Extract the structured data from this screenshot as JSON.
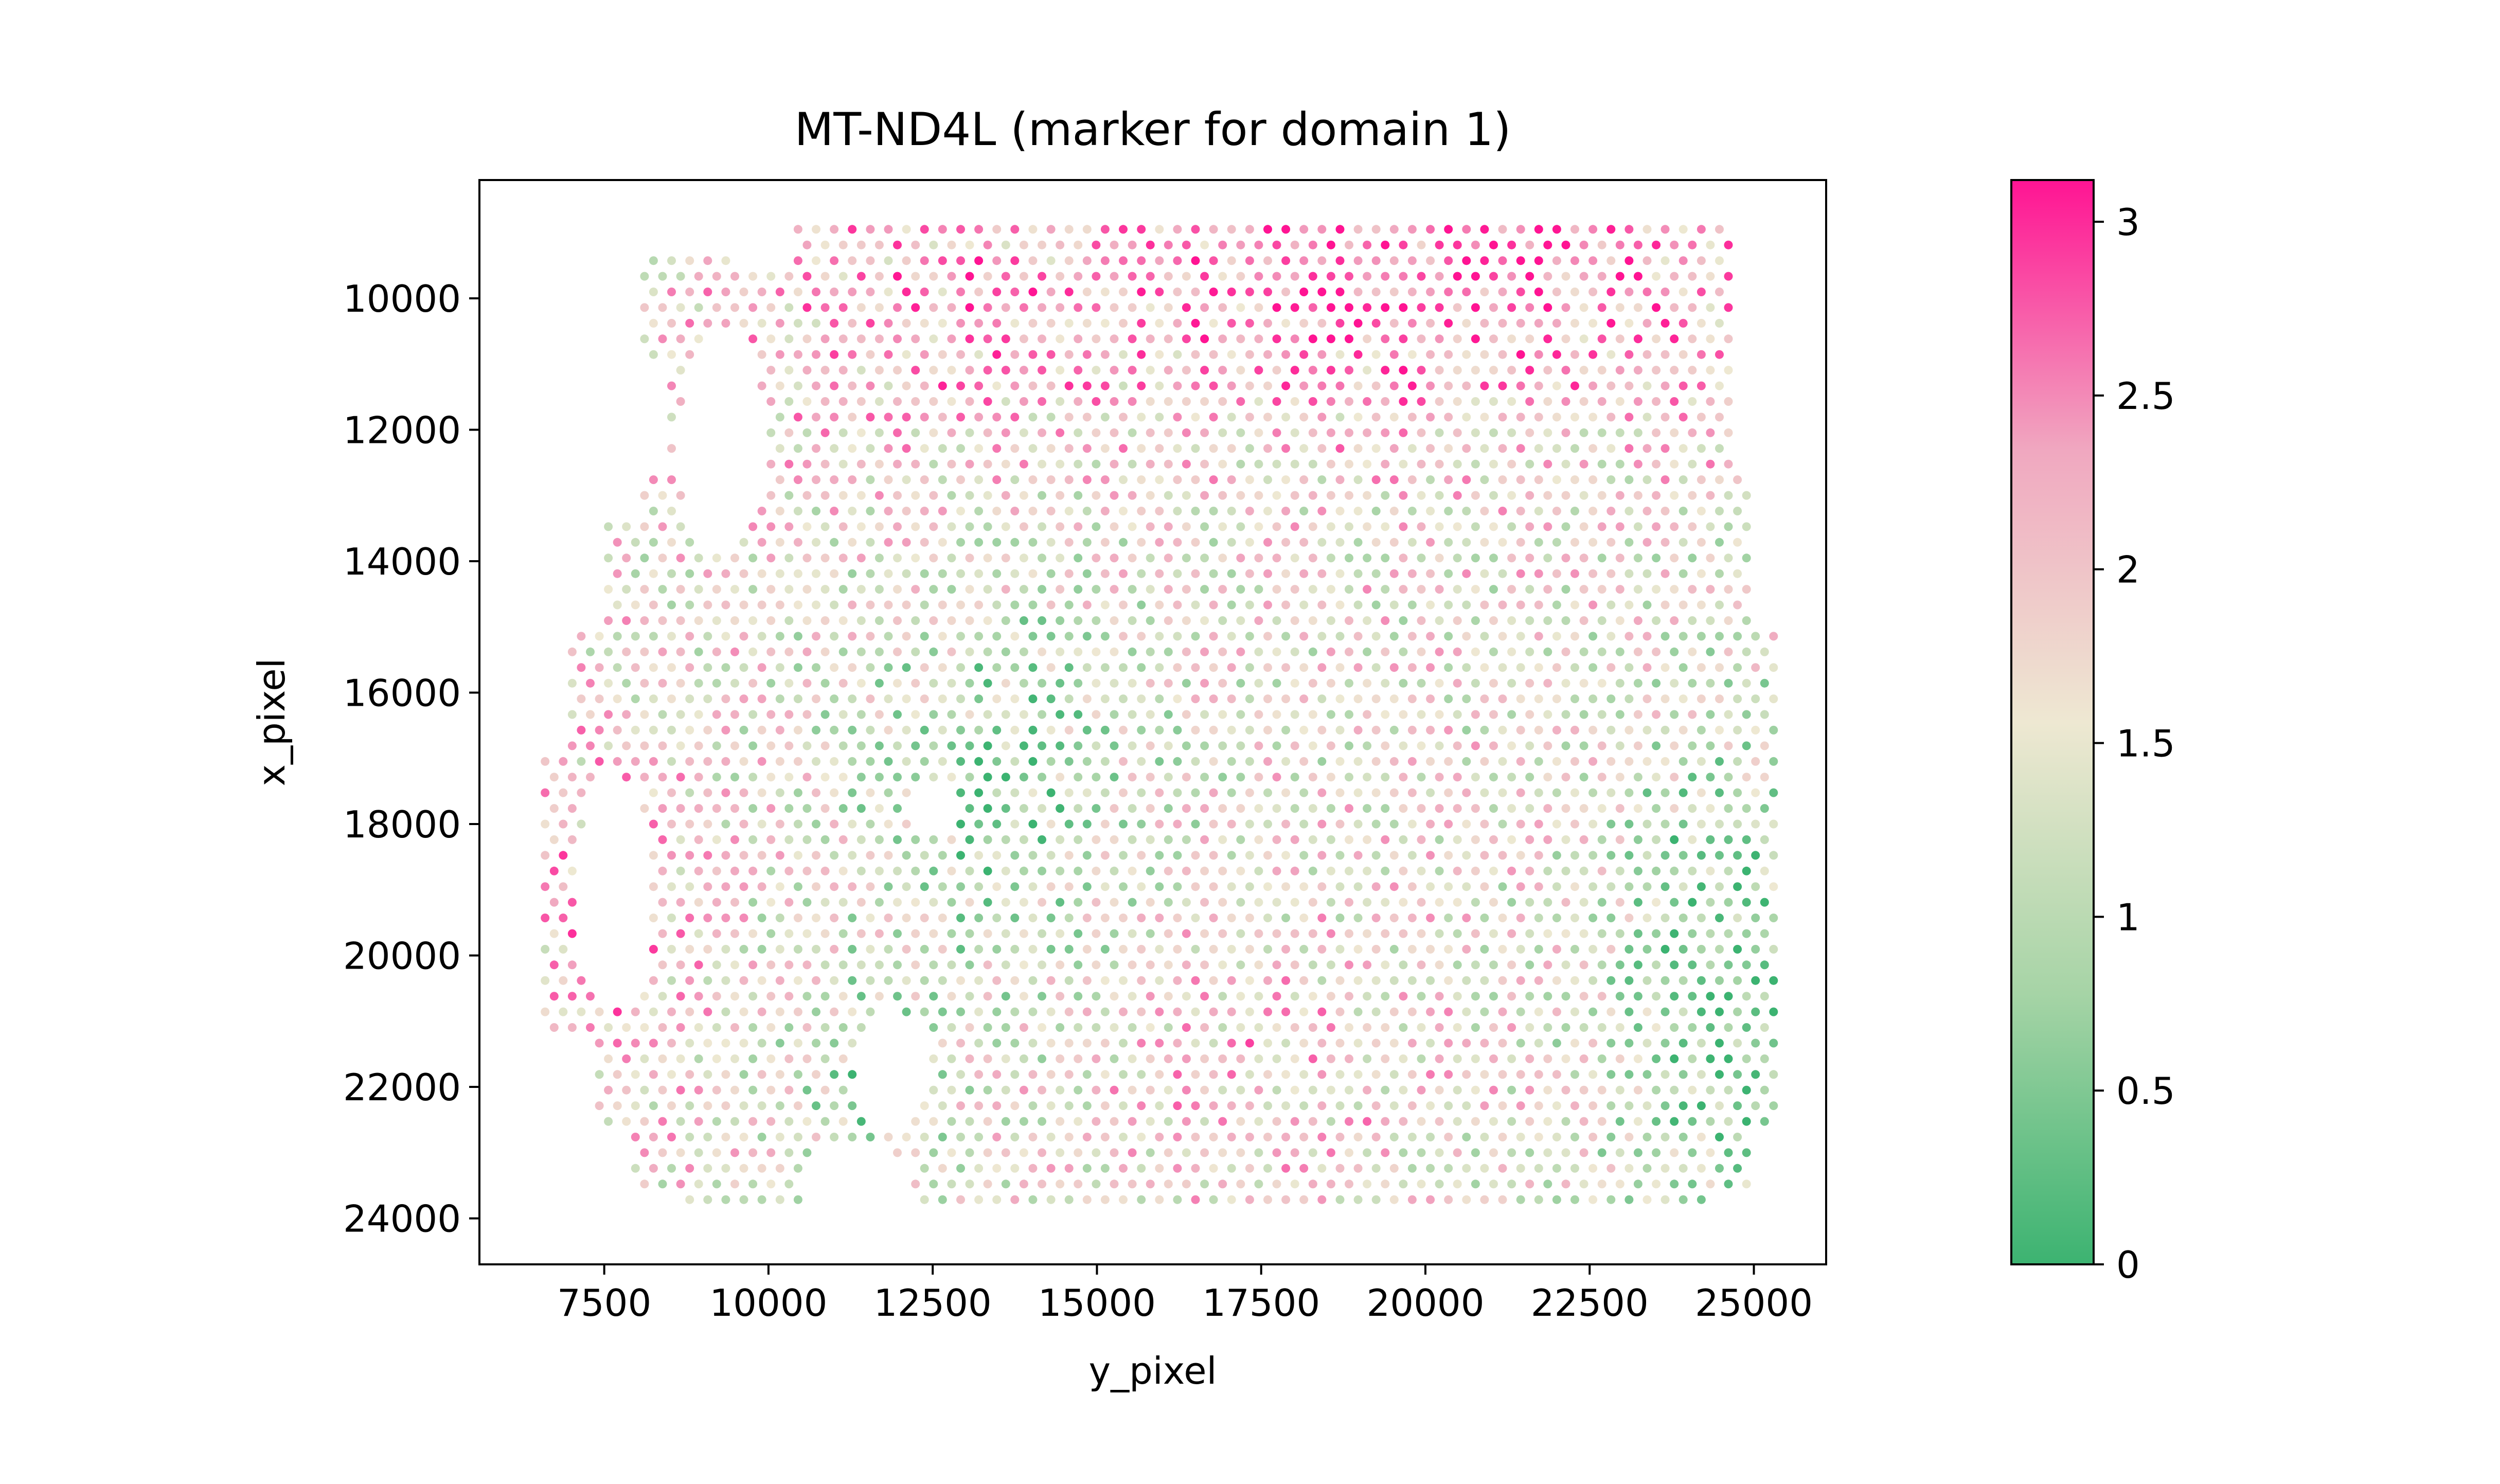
{
  "chart_data": {
    "type": "scatter",
    "title": "MT-ND4L (marker for domain 1)",
    "xlabel": "y_pixel",
    "ylabel": "x_pixel",
    "xlim": [
      5600,
      26100
    ],
    "ylim": [
      24700,
      8200
    ],
    "y_inverted": true,
    "x_ticks": [
      7500,
      10000,
      12500,
      15000,
      17500,
      20000,
      22500,
      25000
    ],
    "y_ticks": [
      10000,
      12000,
      14000,
      16000,
      18000,
      20000,
      22000,
      24000
    ],
    "grid": false,
    "colorbar": {
      "min": 0,
      "max": 3.12,
      "ticks": [
        "0",
        "0.5",
        "1",
        "1.5",
        "2",
        "2.5",
        "3"
      ],
      "tick_values": [
        0,
        0.5,
        1,
        1.5,
        2,
        2.5,
        3
      ],
      "colors": [
        "#3cb371",
        "#a6d4a6",
        "#eee8d2",
        "#f0a8c0",
        "#ff1493"
      ]
    },
    "spot_grid": {
      "spacing": 275,
      "note_regions": "tissue spots on hexagonal lattice"
    },
    "regions": [
      {
        "y0": 8950,
        "y1": 9300,
        "x_min": 10150,
        "x_max": 24700
      },
      {
        "y0": 9300,
        "y1": 11000,
        "x_min": 8000,
        "x_max": 24700
      },
      {
        "y0": 11000,
        "y1": 12600,
        "x_min": 8500,
        "x_max": 24700
      },
      {
        "y0": 12600,
        "y1": 13400,
        "x_min": 8100,
        "x_max": 24900
      },
      {
        "y0": 13400,
        "y1": 15000,
        "x_min": 7500,
        "x_max": 24900
      },
      {
        "y0": 15000,
        "y1": 17000,
        "x_min": 7000,
        "x_max": 25300
      },
      {
        "y0": 17000,
        "y1": 21200,
        "x_min": 6600,
        "x_max": 25300
      },
      {
        "y0": 21200,
        "y1": 22700,
        "x_min": 7300,
        "x_max": 25300
      },
      {
        "y0": 22700,
        "y1": 23500,
        "x_min": 7900,
        "x_max": 25000
      },
      {
        "y0": 23500,
        "y1": 23950,
        "x_min": 8600,
        "x_max": 24400
      }
    ],
    "holes": [
      {
        "cx": 9300,
        "cy": 12200,
        "rx": 650,
        "ry": 1700
      },
      {
        "cx": 7650,
        "cy": 19000,
        "rx": 600,
        "ry": 1800
      },
      {
        "cx": 12500,
        "cy": 17800,
        "rx": 420,
        "ry": 380
      },
      {
        "cx": 11900,
        "cy": 21700,
        "rx": 550,
        "ry": 900
      },
      {
        "cx": 11300,
        "cy": 23450,
        "rx": 900,
        "ry": 600
      },
      {
        "cx": 9900,
        "cy": 9250,
        "rx": 600,
        "ry": 350
      }
    ],
    "expression_field": {
      "base": 1.6,
      "components": [
        {
          "cx": 20000,
          "cy": 9500,
          "sx": 6000,
          "sy": 2500,
          "amp": 1.1
        },
        {
          "cx": 12000,
          "cy": 10500,
          "sx": 3000,
          "sy": 2500,
          "amp": 0.5
        },
        {
          "cx": 7500,
          "cy": 19500,
          "sx": 1500,
          "sy": 3000,
          "amp": 0.6
        },
        {
          "cx": 24500,
          "cy": 20500,
          "sx": 1800,
          "sy": 4000,
          "amp": -1.2
        },
        {
          "cx": 13500,
          "cy": 17500,
          "sx": 2200,
          "sy": 3000,
          "amp": -0.9
        },
        {
          "cx": 11500,
          "cy": 22000,
          "sx": 1200,
          "sy": 1500,
          "amp": -0.8
        },
        {
          "cx": 17500,
          "cy": 21500,
          "sx": 2500,
          "sy": 2000,
          "amp": 0.4
        }
      ],
      "noise": 0.9
    }
  }
}
